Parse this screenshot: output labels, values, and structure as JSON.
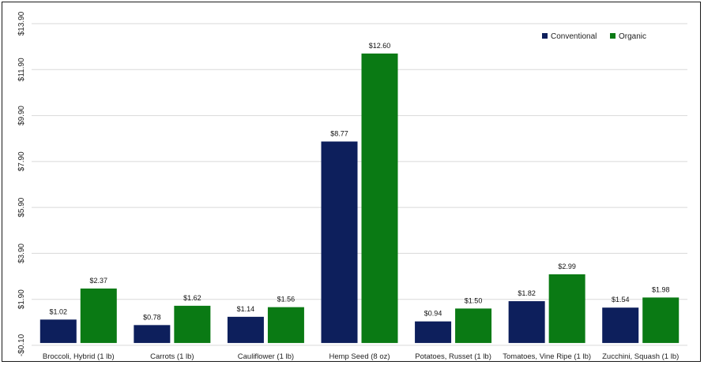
{
  "chart_data": {
    "type": "bar",
    "categories": [
      "Broccoli, Hybrid (1 lb)",
      "Carrots (1 lb)",
      "Cauliflower (1 lb)",
      "Hemp Seed (8 oz)",
      "Potatoes, Russet (1 lb)",
      "Tomatoes, Vine Ripe (1 lb)",
      "Zucchini, Squash (1 lb)"
    ],
    "series": [
      {
        "name": "Conventional",
        "color": "#0d1f5c",
        "values": [
          1.02,
          0.78,
          1.14,
          8.77,
          0.94,
          1.82,
          1.54
        ],
        "labels": [
          "$1.02",
          "$0.78",
          "$1.14",
          "$8.77",
          "$0.94",
          "$1.82",
          "$1.54"
        ]
      },
      {
        "name": "Organic",
        "color": "#0a7a14",
        "values": [
          2.37,
          1.62,
          1.56,
          12.6,
          1.5,
          2.99,
          1.98
        ],
        "labels": [
          "$2.37",
          "$1.62",
          "$1.56",
          "$12.60",
          "$1.50",
          "$2.99",
          "$1.98"
        ]
      }
    ],
    "y_ticks": [
      -0.1,
      1.9,
      3.9,
      5.9,
      7.9,
      9.9,
      11.9,
      13.9
    ],
    "y_tick_labels": [
      "-$0.10",
      "$1.90",
      "$3.90",
      "$5.90",
      "$7.90",
      "$9.90",
      "$11.90",
      "$13.90"
    ],
    "ylim": [
      -0.1,
      13.9
    ],
    "grid": true,
    "legend_position": "top-right",
    "title": "",
    "xlabel": "",
    "ylabel": ""
  }
}
